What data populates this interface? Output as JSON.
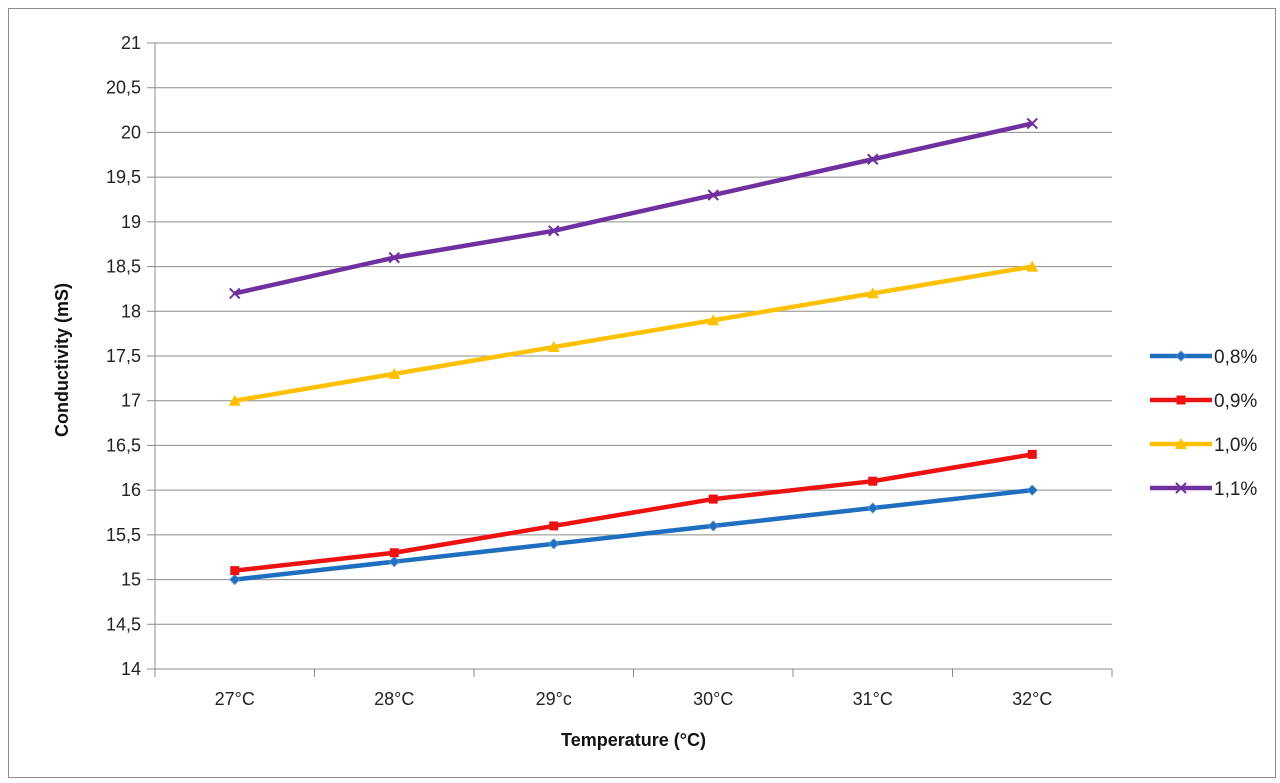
{
  "chart_data": {
    "type": "line",
    "title": "",
    "xlabel": "Temperature (°C)",
    "ylabel": "Conductivity (mS)",
    "categories": [
      "27°C",
      "28°C",
      "29°c",
      "30°C",
      "31°C",
      "32°C"
    ],
    "ylim": [
      14,
      21
    ],
    "yticks": [
      "14",
      "14,5",
      "15",
      "15,5",
      "16",
      "16,5",
      "17",
      "17,5",
      "18",
      "18,5",
      "19",
      "19,5",
      "20",
      "20,5",
      "21"
    ],
    "ytick_values": [
      14,
      14.5,
      15,
      15.5,
      16,
      16.5,
      17,
      17.5,
      18,
      18.5,
      19,
      19.5,
      20,
      20.5,
      21
    ],
    "grid": true,
    "legend_position": "right",
    "series": [
      {
        "name": "0,8%",
        "values": [
          15.0,
          15.2,
          15.4,
          15.6,
          15.8,
          16.0
        ],
        "color": "#1f6fc1",
        "marker": "diamond"
      },
      {
        "name": "0,9%",
        "values": [
          15.1,
          15.3,
          15.6,
          15.9,
          16.1,
          16.4
        ],
        "color": "#ee1111",
        "marker": "square"
      },
      {
        "name": "1,0%",
        "values": [
          17.0,
          17.3,
          17.6,
          17.9,
          18.2,
          18.5
        ],
        "color": "#ffc000",
        "marker": "triangle"
      },
      {
        "name": "1,1%",
        "values": [
          18.2,
          18.6,
          18.9,
          19.3,
          19.7,
          20.1
        ],
        "color": "#7030a0",
        "marker": "x"
      }
    ]
  }
}
